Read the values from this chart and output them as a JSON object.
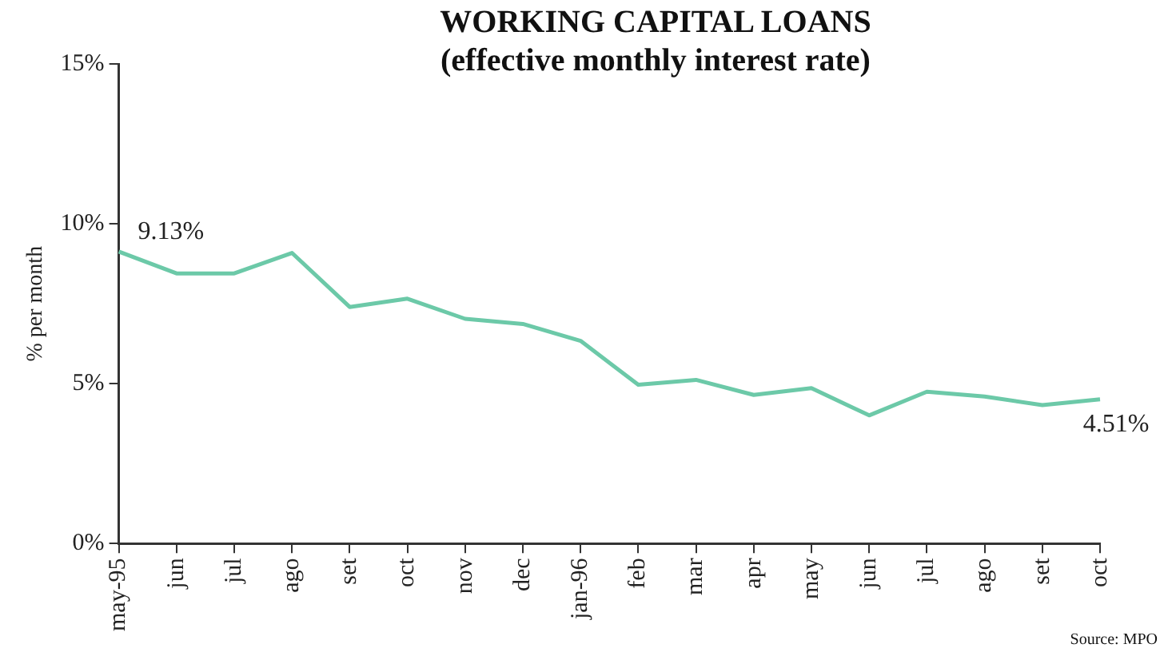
{
  "chart_data": {
    "type": "line",
    "title": "WORKING CAPITAL LOANS",
    "subtitle": "(effective monthly interest rate)",
    "ylabel": "% per month",
    "categories": [
      "may-95",
      "jun",
      "jul",
      "ago",
      "set",
      "oct",
      "nov",
      "dec",
      "jan-96",
      "feb",
      "mar",
      "apr",
      "may",
      "jun",
      "jul",
      "ago",
      "set",
      "oct"
    ],
    "values": [
      9.13,
      8.45,
      8.45,
      9.09,
      7.4,
      7.66,
      7.03,
      6.87,
      6.34,
      4.97,
      5.12,
      4.65,
      4.86,
      4.01,
      4.75,
      4.6,
      4.33,
      4.51
    ],
    "value_labels": [
      "9.13%",
      null,
      null,
      null,
      null,
      null,
      null,
      null,
      null,
      null,
      null,
      null,
      null,
      null,
      null,
      null,
      null,
      "4.51%"
    ],
    "color": "#6cc9a8",
    "ylim": [
      0,
      15
    ],
    "yticks": [
      {
        "value": 0,
        "label": "0%"
      },
      {
        "value": 5,
        "label": "5%"
      },
      {
        "value": 10,
        "label": "10%"
      },
      {
        "value": 15,
        "label": "15%"
      }
    ],
    "grid": false,
    "legend": false,
    "marker": "none",
    "line_style": "solid",
    "annotations": [
      "Source: MPO"
    ]
  }
}
